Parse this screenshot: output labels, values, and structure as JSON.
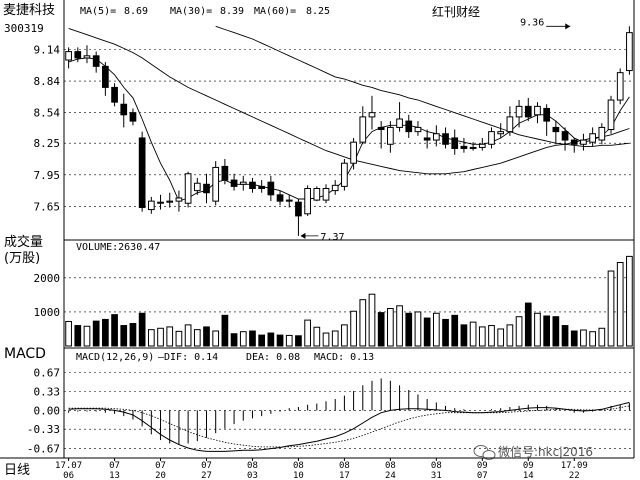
{
  "header": {
    "stock_name": "麦捷科技",
    "stock_code": "300319",
    "ma5_label": "MA(5)=",
    "ma5_value": "8.69",
    "ma30_label": "MA(30)=",
    "ma30_value": "8.39",
    "ma60_label": "MA(60)=",
    "ma60_value": "8.25",
    "source": "红刊财经"
  },
  "volume_panel": {
    "title_line1": "成交量",
    "title_line2": "(万股)",
    "readout": "VOLUME:2630.47"
  },
  "macd_panel": {
    "title": "MACD",
    "readout_name": "MACD(12,26,9)",
    "dif_label": "—DIF: 0.14",
    "dea_label": "DEA: 0.08",
    "macd_label": "MACD: 0.13"
  },
  "bottom": {
    "period_label": "日线",
    "watermark": "微信号:hkcj2016"
  },
  "colors": {
    "background": "#ffffff",
    "candle": "#000000",
    "grid": "#000000"
  },
  "chart_data": [
    {
      "type": "candlestick",
      "yticks": [
        7.65,
        7.95,
        8.25,
        8.54,
        8.84,
        9.14
      ],
      "ylim": [
        7.35,
        9.42
      ],
      "annotations": [
        {
          "text": "9.36",
          "value": 9.36,
          "index": 55
        },
        {
          "text": "7.37",
          "value": 7.37,
          "index": 25
        }
      ],
      "candles": [
        {
          "o": 9.04,
          "c": 9.12,
          "h": 9.16,
          "l": 8.96
        },
        {
          "o": 9.12,
          "c": 9.06,
          "h": 9.16,
          "l": 9.02
        },
        {
          "o": 9.06,
          "c": 9.08,
          "h": 9.18,
          "l": 9.01
        },
        {
          "o": 9.08,
          "c": 8.98,
          "h": 9.12,
          "l": 8.92
        },
        {
          "o": 8.98,
          "c": 8.78,
          "h": 9.02,
          "l": 8.7
        },
        {
          "o": 8.78,
          "c": 8.64,
          "h": 8.82,
          "l": 8.6
        },
        {
          "o": 8.62,
          "c": 8.52,
          "h": 8.72,
          "l": 8.4
        },
        {
          "o": 8.54,
          "c": 8.46,
          "h": 8.58,
          "l": 8.42
        },
        {
          "o": 8.3,
          "c": 7.64,
          "h": 8.36,
          "l": 7.6
        },
        {
          "o": 7.62,
          "c": 7.7,
          "h": 7.74,
          "l": 7.58
        },
        {
          "o": 7.68,
          "c": 7.69,
          "h": 7.76,
          "l": 7.62
        },
        {
          "o": 7.69,
          "c": 7.7,
          "h": 7.78,
          "l": 7.64
        },
        {
          "o": 7.7,
          "c": 7.73,
          "h": 7.8,
          "l": 7.6
        },
        {
          "o": 7.68,
          "c": 7.96,
          "h": 7.98,
          "l": 7.64
        },
        {
          "o": 7.8,
          "c": 7.87,
          "h": 7.92,
          "l": 7.76
        },
        {
          "o": 7.86,
          "c": 7.78,
          "h": 7.96,
          "l": 7.68
        },
        {
          "o": 7.7,
          "c": 8.02,
          "h": 8.08,
          "l": 7.66
        },
        {
          "o": 8.03,
          "c": 7.9,
          "h": 8.1,
          "l": 7.86
        },
        {
          "o": 7.9,
          "c": 7.84,
          "h": 7.96,
          "l": 7.8
        },
        {
          "o": 7.86,
          "c": 7.88,
          "h": 7.94,
          "l": 7.8
        },
        {
          "o": 7.88,
          "c": 7.82,
          "h": 7.92,
          "l": 7.78
        },
        {
          "o": 7.84,
          "c": 7.82,
          "h": 7.9,
          "l": 7.78
        },
        {
          "o": 7.88,
          "c": 7.76,
          "h": 7.94,
          "l": 7.7
        },
        {
          "o": 7.76,
          "c": 7.7,
          "h": 7.8,
          "l": 7.66
        },
        {
          "o": 7.7,
          "c": 7.71,
          "h": 7.76,
          "l": 7.64
        },
        {
          "o": 7.69,
          "c": 7.56,
          "h": 7.72,
          "l": 7.37
        },
        {
          "o": 7.58,
          "c": 7.82,
          "h": 7.85,
          "l": 7.56
        },
        {
          "o": 7.71,
          "c": 7.82,
          "h": 7.84,
          "l": 7.7
        },
        {
          "o": 7.71,
          "c": 7.82,
          "h": 7.86,
          "l": 7.68
        },
        {
          "o": 7.8,
          "c": 7.85,
          "h": 7.9,
          "l": 7.76
        },
        {
          "o": 7.84,
          "c": 8.06,
          "h": 8.1,
          "l": 7.8
        },
        {
          "o": 8.06,
          "c": 8.26,
          "h": 8.3,
          "l": 8.0
        },
        {
          "o": 8.26,
          "c": 8.5,
          "h": 8.6,
          "l": 8.24
        },
        {
          "o": 8.5,
          "c": 8.54,
          "h": 8.7,
          "l": 8.38
        },
        {
          "o": 8.4,
          "c": 8.38,
          "h": 8.46,
          "l": 8.2
        },
        {
          "o": 8.24,
          "c": 8.4,
          "h": 8.46,
          "l": 8.16
        },
        {
          "o": 8.4,
          "c": 8.48,
          "h": 8.64,
          "l": 8.36
        },
        {
          "o": 8.46,
          "c": 8.36,
          "h": 8.52,
          "l": 8.3
        },
        {
          "o": 8.36,
          "c": 8.4,
          "h": 8.46,
          "l": 8.32
        },
        {
          "o": 8.3,
          "c": 8.28,
          "h": 8.38,
          "l": 8.2
        },
        {
          "o": 8.28,
          "c": 8.34,
          "h": 8.42,
          "l": 8.22
        },
        {
          "o": 8.34,
          "c": 8.24,
          "h": 8.4,
          "l": 8.2
        },
        {
          "o": 8.3,
          "c": 8.2,
          "h": 8.38,
          "l": 8.14
        },
        {
          "o": 8.22,
          "c": 8.2,
          "h": 8.3,
          "l": 8.16
        },
        {
          "o": 8.2,
          "c": 8.21,
          "h": 8.26,
          "l": 8.18
        },
        {
          "o": 8.21,
          "c": 8.24,
          "h": 8.3,
          "l": 8.18
        },
        {
          "o": 8.24,
          "c": 8.36,
          "h": 8.4,
          "l": 8.2
        },
        {
          "o": 8.34,
          "c": 8.36,
          "h": 8.44,
          "l": 8.3
        },
        {
          "o": 8.36,
          "c": 8.5,
          "h": 8.6,
          "l": 8.32
        },
        {
          "o": 8.5,
          "c": 8.6,
          "h": 8.66,
          "l": 8.4
        },
        {
          "o": 8.6,
          "c": 8.5,
          "h": 8.68,
          "l": 8.46
        },
        {
          "o": 8.52,
          "c": 8.6,
          "h": 8.64,
          "l": 8.44
        },
        {
          "o": 8.58,
          "c": 8.46,
          "h": 8.62,
          "l": 8.32
        },
        {
          "o": 8.4,
          "c": 8.36,
          "h": 8.46,
          "l": 8.24
        },
        {
          "o": 8.36,
          "c": 8.28,
          "h": 8.4,
          "l": 8.18
        },
        {
          "o": 8.28,
          "c": 8.24,
          "h": 8.3,
          "l": 8.16
        },
        {
          "o": 8.24,
          "c": 8.28,
          "h": 8.34,
          "l": 8.18
        },
        {
          "o": 8.26,
          "c": 8.34,
          "h": 8.4,
          "l": 8.22
        },
        {
          "o": 8.28,
          "c": 8.4,
          "h": 8.44,
          "l": 8.24
        },
        {
          "o": 8.38,
          "c": 8.66,
          "h": 8.7,
          "l": 8.34
        },
        {
          "o": 8.66,
          "c": 8.92,
          "h": 8.96,
          "l": 8.62
        },
        {
          "o": 8.94,
          "c": 9.3,
          "h": 9.36,
          "l": 8.9
        }
      ],
      "ma_lines": [
        {
          "name": "MA(5)",
          "values": [
            9.02,
            9.05,
            9.06,
            9.05,
            8.98,
            8.9,
            8.78,
            8.68,
            8.48,
            8.26,
            8.06,
            7.9,
            7.7,
            7.73,
            7.78,
            7.8,
            7.88,
            7.9,
            7.86,
            7.86,
            7.86,
            7.84,
            7.82,
            7.8,
            7.76,
            7.72,
            7.72,
            7.73,
            7.76,
            7.82,
            7.9,
            8.06,
            8.26,
            8.36,
            8.4,
            8.42,
            8.42,
            8.42,
            8.4,
            8.36,
            8.34,
            8.3,
            8.28,
            8.26,
            8.24,
            8.24,
            8.26,
            8.3,
            8.36,
            8.44,
            8.48,
            8.52,
            8.52,
            8.46,
            8.38,
            8.3,
            8.26,
            8.28,
            8.32,
            8.4,
            8.56,
            8.69
          ]
        },
        {
          "name": "MA(30)",
          "values": [
            9.34,
            9.31,
            9.28,
            9.25,
            9.22,
            9.19,
            9.15,
            9.11,
            9.06,
            9.0,
            8.94,
            8.88,
            8.83,
            8.78,
            8.74,
            8.7,
            8.66,
            8.62,
            8.58,
            8.54,
            8.5,
            8.46,
            8.42,
            8.38,
            8.34,
            8.3,
            8.26,
            8.22,
            8.18,
            8.15,
            8.12,
            8.09,
            8.07,
            8.05,
            8.03,
            8.01,
            7.99,
            7.98,
            7.97,
            7.96,
            7.96,
            7.96,
            7.97,
            7.98,
            8.0,
            8.02,
            8.04,
            8.06,
            8.09,
            8.12,
            8.15,
            8.18,
            8.21,
            8.23,
            8.24,
            8.26,
            8.28,
            8.3,
            8.31,
            8.33,
            8.36,
            8.39
          ]
        },
        {
          "name": "MA(60)",
          "values": [
            null,
            null,
            null,
            null,
            null,
            null,
            null,
            null,
            null,
            null,
            null,
            null,
            null,
            null,
            null,
            null,
            9.36,
            9.33,
            9.3,
            9.27,
            9.24,
            9.2,
            9.16,
            9.12,
            9.08,
            9.04,
            9.0,
            8.96,
            8.92,
            8.88,
            8.86,
            8.83,
            8.8,
            8.78,
            8.75,
            8.73,
            8.71,
            8.68,
            8.66,
            8.63,
            8.6,
            8.57,
            8.54,
            8.51,
            8.48,
            8.45,
            8.42,
            8.39,
            8.36,
            8.33,
            8.31,
            8.29,
            8.27,
            8.25,
            8.24,
            8.23,
            8.22,
            8.22,
            8.23,
            8.23,
            8.24,
            8.25
          ]
        }
      ]
    },
    {
      "type": "bar",
      "yticks": [
        1000,
        2000
      ],
      "ylim": [
        0,
        2700
      ],
      "values": [
        720,
        600,
        580,
        730,
        780,
        920,
        600,
        660,
        960,
        480,
        520,
        560,
        430,
        620,
        480,
        560,
        440,
        900,
        360,
        420,
        440,
        320,
        380,
        320,
        310,
        300,
        760,
        550,
        380,
        440,
        620,
        1020,
        1360,
        1520,
        980,
        1100,
        1180,
        960,
        1000,
        820,
        960,
        780,
        900,
        620,
        700,
        560,
        600,
        500,
        620,
        860,
        1260,
        960,
        880,
        860,
        600,
        440,
        470,
        420,
        520,
        2200,
        2450,
        2630
      ]
    },
    {
      "type": "macd",
      "yticks": [
        0.67,
        0.33,
        0.0,
        -0.33,
        -0.67
      ],
      "ylim": [
        -0.8,
        0.85
      ],
      "dif": [
        0.02,
        0.03,
        0.03,
        0.03,
        0.02,
        0.0,
        -0.03,
        -0.08,
        -0.18,
        -0.3,
        -0.42,
        -0.52,
        -0.6,
        -0.66,
        -0.7,
        -0.72,
        -0.72,
        -0.72,
        -0.71,
        -0.7,
        -0.7,
        -0.69,
        -0.67,
        -0.65,
        -0.62,
        -0.6,
        -0.57,
        -0.54,
        -0.5,
        -0.46,
        -0.4,
        -0.32,
        -0.22,
        -0.12,
        -0.04,
        0.0,
        0.02,
        0.03,
        0.03,
        0.02,
        0.01,
        0.0,
        -0.02,
        -0.03,
        -0.04,
        -0.04,
        -0.03,
        -0.02,
        0.0,
        0.02,
        0.04,
        0.05,
        0.05,
        0.04,
        0.02,
        0.0,
        -0.01,
        0.0,
        0.02,
        0.06,
        0.1,
        0.14
      ],
      "dea": [
        0.04,
        0.04,
        0.04,
        0.04,
        0.04,
        0.03,
        0.02,
        0.0,
        -0.04,
        -0.09,
        -0.16,
        -0.23,
        -0.3,
        -0.37,
        -0.43,
        -0.48,
        -0.52,
        -0.56,
        -0.59,
        -0.61,
        -0.63,
        -0.64,
        -0.64,
        -0.64,
        -0.64,
        -0.63,
        -0.62,
        -0.6,
        -0.58,
        -0.56,
        -0.53,
        -0.49,
        -0.44,
        -0.38,
        -0.32,
        -0.26,
        -0.2,
        -0.15,
        -0.11,
        -0.08,
        -0.06,
        -0.04,
        -0.04,
        -0.04,
        -0.04,
        -0.04,
        -0.04,
        -0.04,
        -0.03,
        -0.02,
        -0.01,
        0.0,
        0.01,
        0.02,
        0.02,
        0.02,
        0.01,
        0.01,
        0.01,
        0.02,
        0.05,
        0.08
      ],
      "macd": [
        -0.04,
        -0.02,
        -0.02,
        -0.02,
        -0.04,
        -0.06,
        -0.1,
        -0.16,
        -0.28,
        -0.42,
        -0.52,
        -0.58,
        -0.6,
        -0.58,
        -0.54,
        -0.48,
        -0.4,
        -0.32,
        -0.24,
        -0.18,
        -0.14,
        -0.1,
        -0.06,
        -0.02,
        0.04,
        0.06,
        0.1,
        0.12,
        0.16,
        0.2,
        0.26,
        0.34,
        0.44,
        0.52,
        0.56,
        0.52,
        0.44,
        0.36,
        0.28,
        0.2,
        0.14,
        0.08,
        0.04,
        0.02,
        0.0,
        0.0,
        0.02,
        0.04,
        0.06,
        0.08,
        0.1,
        0.1,
        0.08,
        0.04,
        0.0,
        -0.04,
        -0.04,
        -0.02,
        0.02,
        0.08,
        0.1,
        0.13
      ]
    }
  ],
  "x_axis": {
    "ticks": [
      {
        "index": 0,
        "top": "17.07",
        "bottom": "06"
      },
      {
        "index": 5,
        "top": "07",
        "bottom": "13"
      },
      {
        "index": 10,
        "top": "07",
        "bottom": "20"
      },
      {
        "index": 15,
        "top": "07",
        "bottom": "27"
      },
      {
        "index": 20,
        "top": "08",
        "bottom": "03"
      },
      {
        "index": 25,
        "top": "08",
        "bottom": "10"
      },
      {
        "index": 30,
        "top": "08",
        "bottom": "17"
      },
      {
        "index": 35,
        "top": "08",
        "bottom": "24"
      },
      {
        "index": 40,
        "top": "08",
        "bottom": "31"
      },
      {
        "index": 45,
        "top": "09",
        "bottom": "07"
      },
      {
        "index": 50,
        "top": "09",
        "bottom": "14"
      },
      {
        "index": 55,
        "top": "17.09",
        "bottom": "22"
      }
    ]
  }
}
